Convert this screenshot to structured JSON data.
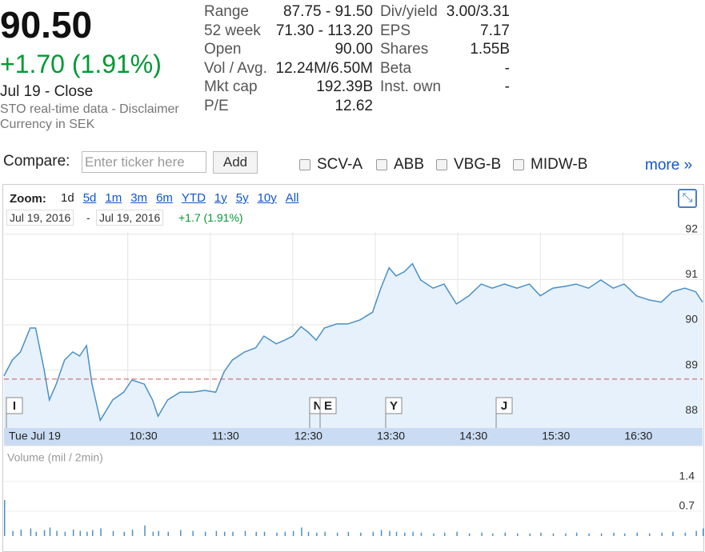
{
  "quote": {
    "price": "90.50",
    "change": "+1.70 (1.91%)",
    "date": "Jul 19 - Close",
    "source": "STO real-time data - Disclaimer",
    "currency": "Currency in SEK"
  },
  "stats_left": [
    [
      "Range",
      "87.75 - 91.50"
    ],
    [
      "52 week",
      "71.30 - 113.20"
    ],
    [
      "Open",
      "90.00"
    ],
    [
      "Vol / Avg.",
      "12.24M/6.50M"
    ],
    [
      "Mkt cap",
      "192.39B"
    ],
    [
      "P/E",
      "12.62"
    ]
  ],
  "stats_right": [
    [
      "Div/yield",
      "3.00/3.31"
    ],
    [
      "EPS",
      "7.17"
    ],
    [
      "Shares",
      "1.55B"
    ],
    [
      "Beta",
      "-"
    ],
    [
      "Inst. own",
      "-"
    ]
  ],
  "compare": {
    "label": "Compare:",
    "placeholder": "Enter ticker here",
    "button": "Add",
    "tickers": [
      "SCV-A",
      "ABB",
      "VBG-B",
      "MIDW-B"
    ],
    "more": "more »"
  },
  "zoom": {
    "label": "Zoom:",
    "options": [
      "1d",
      "5d",
      "1m",
      "3m",
      "6m",
      "YTD",
      "1y",
      "5y",
      "10y",
      "All"
    ],
    "from": "Jul 19, 2016",
    "sep": "-",
    "to": "Jul 19, 2016",
    "change": "+1.7 (1.91%)"
  },
  "chart_data": {
    "type": "area",
    "color": "#4a90c8",
    "fill": "#e6f1fb",
    "x": [
      540,
      546,
      552,
      559,
      563,
      569,
      573,
      578,
      584,
      590,
      595,
      600,
      604,
      610,
      619,
      627,
      633,
      642,
      648,
      652,
      659,
      668,
      677,
      686,
      694,
      700,
      706,
      715,
      723,
      729,
      738,
      744,
      750,
      756,
      761,
      767,
      773,
      782,
      790,
      799,
      808,
      814,
      820,
      825,
      831,
      837,
      843,
      852,
      860,
      869,
      878,
      887,
      895,
      904,
      913,
      922,
      930,
      939,
      948,
      956,
      965,
      974,
      983,
      991,
      1000,
      1009,
      1018,
      1026,
      1035,
      1043,
      1048
    ],
    "values": [
      88.87,
      89.22,
      89.4,
      89.93,
      89.93,
      89.04,
      88.34,
      88.69,
      89.22,
      89.4,
      89.31,
      89.54,
      88.69,
      87.89,
      88.34,
      88.51,
      88.78,
      88.69,
      88.34,
      87.98,
      88.34,
      88.51,
      88.51,
      88.55,
      88.51,
      88.96,
      89.22,
      89.4,
      89.49,
      89.75,
      89.58,
      89.66,
      89.75,
      89.96,
      89.84,
      89.66,
      89.93,
      90.02,
      90.02,
      90.11,
      90.28,
      90.81,
      91.26,
      91.08,
      91.17,
      91.35,
      90.99,
      90.81,
      90.9,
      90.46,
      90.64,
      90.9,
      90.81,
      90.9,
      90.81,
      90.9,
      90.64,
      90.81,
      90.85,
      90.9,
      90.81,
      90.99,
      90.81,
      90.9,
      90.64,
      90.55,
      90.5,
      90.73,
      90.81,
      90.73,
      90.5
    ],
    "prev_close": 88.8,
    "xlim": [
      540,
      1048
    ],
    "xticks": [
      {
        "value": 540,
        "label": "Tue Jul 19"
      },
      {
        "value": 630,
        "label": "10:30"
      },
      {
        "value": 690,
        "label": "11:30"
      },
      {
        "value": 750,
        "label": "12:30"
      },
      {
        "value": 810,
        "label": "13:30"
      },
      {
        "value": 870,
        "label": "14:30"
      },
      {
        "value": 930,
        "label": "15:30"
      },
      {
        "value": 990,
        "label": "16:30"
      }
    ],
    "ylim": [
      87.72,
      92.05
    ],
    "yticks": [
      88,
      89,
      90,
      91,
      92
    ],
    "grid": true,
    "events": [
      "I",
      "N",
      "E",
      "Y",
      "J"
    ],
    "volume": {
      "title": "Volume (mil / 2min)",
      "color": "#4a90c8",
      "ylim": [
        0,
        1.55
      ],
      "yticks": [
        0.7,
        1.4
      ],
      "values": [
        0.85,
        0.12,
        0.15,
        0.18,
        0.1,
        0.14,
        0.2,
        0.12,
        0.1,
        0.15,
        0.12,
        0.1,
        0.14,
        0.18,
        0.12,
        0.1,
        0.15,
        0.25,
        0.1,
        0.12,
        0.1,
        0.14,
        0.12,
        0.1,
        0.12,
        0.1,
        0.1,
        0.12,
        0.1,
        0.1,
        0.08,
        0.1,
        0.12,
        0.2,
        0.1,
        0.08,
        0.1,
        0.08,
        0.1,
        0.08,
        0.1,
        0.14,
        0.12,
        0.1,
        0.08,
        0.1,
        0.08,
        0.06,
        0.08,
        0.1,
        0.06,
        0.08,
        0.06,
        0.08,
        0.06,
        0.06,
        0.08,
        0.06,
        0.06,
        0.08,
        0.06,
        0.06,
        0.08,
        0.06,
        0.08,
        0.06,
        0.08,
        0.1,
        0.08,
        0.12,
        0.18
      ]
    }
  }
}
